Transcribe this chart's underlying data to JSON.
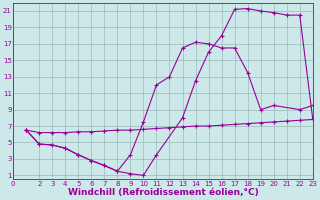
{
  "xlabel": "Windchill (Refroidissement éolien,°C)",
  "bg_color": "#cce8e8",
  "line_color": "#990099",
  "grid_color": "#99bbbb",
  "xlim": [
    0,
    23
  ],
  "ylim": [
    0.5,
    22
  ],
  "xticks": [
    0,
    2,
    3,
    4,
    5,
    6,
    7,
    8,
    9,
    10,
    11,
    12,
    13,
    14,
    15,
    16,
    17,
    18,
    19,
    20,
    21,
    22,
    23
  ],
  "yticks": [
    1,
    3,
    5,
    7,
    9,
    11,
    13,
    15,
    17,
    19,
    21
  ],
  "curve1_x": [
    1,
    2,
    3,
    4,
    5,
    6,
    7,
    8,
    9,
    10,
    11,
    13,
    14,
    15,
    16,
    17,
    18,
    19,
    20,
    21,
    22,
    23
  ],
  "curve1_y": [
    6.5,
    4.8,
    4.7,
    4.3,
    3.5,
    2.8,
    2.2,
    1.5,
    1.2,
    1.0,
    3.5,
    8.0,
    12.5,
    16.0,
    18.0,
    21.2,
    21.3,
    21.0,
    20.8,
    20.5,
    20.5,
    7.8
  ],
  "curve2_x": [
    1,
    2,
    3,
    4,
    5,
    6,
    7,
    8,
    9,
    10,
    11,
    12,
    13,
    14,
    15,
    16,
    17,
    18,
    19,
    20,
    22,
    23
  ],
  "curve2_y": [
    6.5,
    4.8,
    4.7,
    4.3,
    3.5,
    2.8,
    2.2,
    1.5,
    3.5,
    7.5,
    12.0,
    13.0,
    16.5,
    17.2,
    17.0,
    16.5,
    16.5,
    13.5,
    9.0,
    9.5,
    9.0,
    9.5
  ],
  "curve3_x": [
    1,
    2,
    3,
    4,
    5,
    6,
    7,
    8,
    9,
    10,
    11,
    12,
    13,
    14,
    15,
    16,
    17,
    18,
    19,
    20,
    21,
    22,
    23
  ],
  "curve3_y": [
    6.5,
    6.2,
    6.2,
    6.2,
    6.3,
    6.3,
    6.4,
    6.5,
    6.5,
    6.6,
    6.7,
    6.8,
    6.9,
    7.0,
    7.0,
    7.1,
    7.2,
    7.3,
    7.4,
    7.5,
    7.6,
    7.7,
    7.8
  ],
  "marker": "+",
  "markersize": 3,
  "linewidth": 0.8,
  "tick_fontsize": 5,
  "label_fontsize": 6.5
}
